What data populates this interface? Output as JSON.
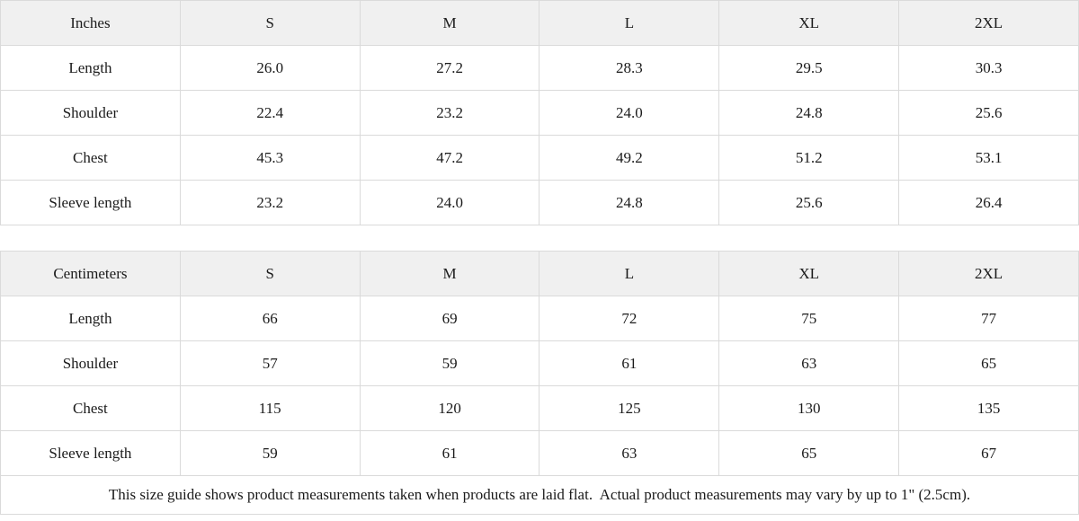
{
  "colors": {
    "header_bg": "#f0f0f0",
    "cell_bg": "#ffffff",
    "border": "#dadada",
    "text": "#1b1b1b"
  },
  "size_guide": {
    "inches": {
      "unit_label": "Inches",
      "columns": [
        "S",
        "M",
        "L",
        "XL",
        "2XL"
      ],
      "rows": [
        {
          "label": "Length",
          "values": [
            "26.0",
            "27.2",
            "28.3",
            "29.5",
            "30.3"
          ]
        },
        {
          "label": "Shoulder",
          "values": [
            "22.4",
            "23.2",
            "24.0",
            "24.8",
            "25.6"
          ]
        },
        {
          "label": "Chest",
          "values": [
            "45.3",
            "47.2",
            "49.2",
            "51.2",
            "53.1"
          ]
        },
        {
          "label": "Sleeve length",
          "values": [
            "23.2",
            "24.0",
            "24.8",
            "25.6",
            "26.4"
          ]
        }
      ]
    },
    "centimeters": {
      "unit_label": "Centimeters",
      "columns": [
        "S",
        "M",
        "L",
        "XL",
        "2XL"
      ],
      "rows": [
        {
          "label": "Length",
          "values": [
            "66",
            "69",
            "72",
            "75",
            "77"
          ]
        },
        {
          "label": "Shoulder",
          "values": [
            "57",
            "59",
            "61",
            "63",
            "65"
          ]
        },
        {
          "label": "Chest",
          "values": [
            "115",
            "120",
            "125",
            "130",
            "135"
          ]
        },
        {
          "label": "Sleeve length",
          "values": [
            "59",
            "61",
            "63",
            "65",
            "67"
          ]
        }
      ]
    },
    "footnote": "This size guide shows product measurements taken when products are laid flat.  Actual product measurements may vary by up to 1\" (2.5cm)."
  }
}
